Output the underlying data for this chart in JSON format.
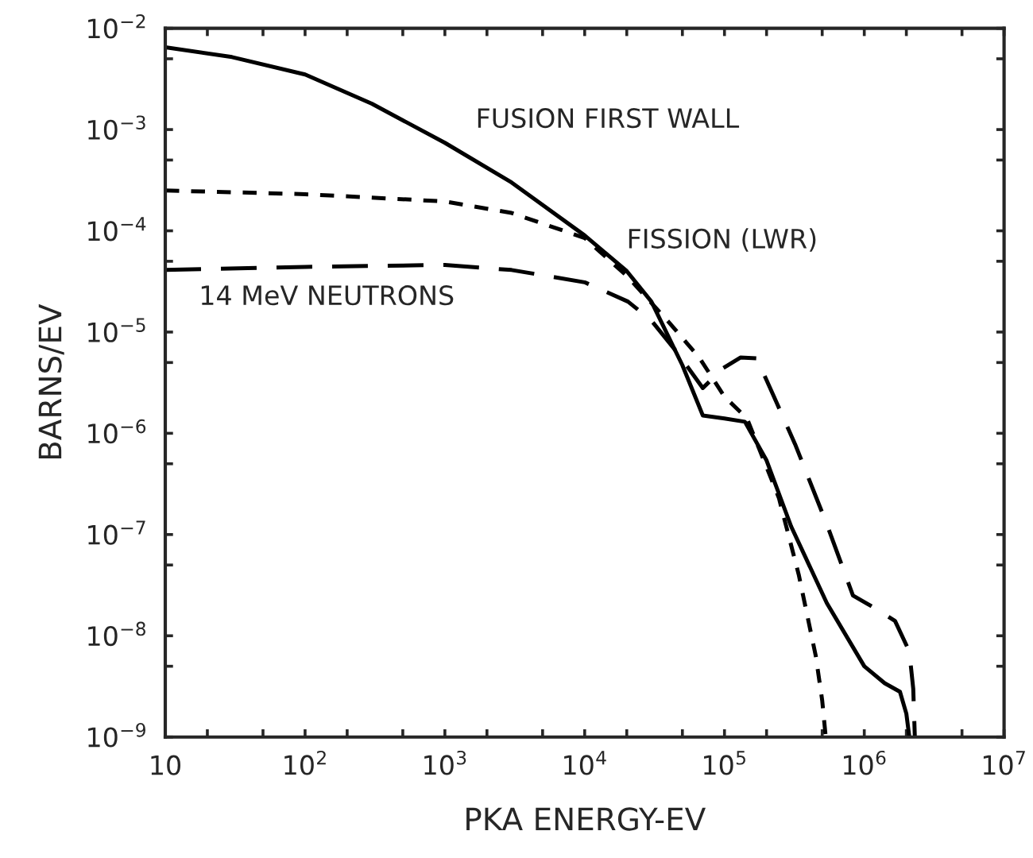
{
  "chart_data": {
    "type": "line",
    "xlabel": "PKA ENERGY-EV",
    "ylabel": "BARNS/EV",
    "log": "xy",
    "grid": false,
    "legend": false,
    "marker": "none",
    "xlim": [
      10,
      10000000
    ],
    "ylim": [
      1e-09,
      0.01
    ],
    "xticks": [
      10,
      {
        "value": 20,
        "label": null
      },
      {
        "value": 50,
        "label": null
      },
      {
        "value": 100,
        "label": "10$^{2}$"
      },
      {
        "value": 200,
        "label": null
      },
      {
        "value": 500,
        "label": null
      },
      {
        "value": 1000,
        "label": "10$^{3}$"
      },
      {
        "value": 2000,
        "label": null
      },
      {
        "value": 5000,
        "label": null
      },
      {
        "value": 10000,
        "label": "10$^{4}$"
      },
      {
        "value": 20000,
        "label": null
      },
      {
        "value": 50000,
        "label": null
      },
      {
        "value": 100000,
        "label": "10$^{5}$"
      },
      {
        "value": 200000,
        "label": null
      },
      {
        "value": 500000,
        "label": null
      },
      {
        "value": 1000000,
        "label": "10$^{6}$"
      },
      {
        "value": 2000000,
        "label": null
      },
      {
        "value": 5000000,
        "label": null
      },
      {
        "value": 10000000,
        "label": "10$^{7}$"
      }
    ],
    "yticks": [
      {
        "value": 1e-09,
        "label": "10$^{−9}$"
      },
      {
        "value": 5e-09,
        "label": null
      },
      {
        "value": 1e-08,
        "label": "10$^{−8}$"
      },
      {
        "value": 5e-08,
        "label": null
      },
      {
        "value": 1e-07,
        "label": "10$^{−7}$"
      },
      {
        "value": 5e-07,
        "label": null
      },
      {
        "value": 1e-06,
        "label": "10$^{−6}$"
      },
      {
        "value": 5e-06,
        "label": null
      },
      {
        "value": 1e-05,
        "label": "10$^{−5}$"
      },
      {
        "value": 5e-05,
        "label": null
      },
      {
        "value": 0.0001,
        "label": "10$^{−4}$"
      },
      {
        "value": 0.0005,
        "label": null
      },
      {
        "value": 0.001,
        "label": "10$^{−3}$"
      },
      {
        "value": 0.005,
        "label": null
      },
      {
        "value": 0.01,
        "label": "10$^{−2}$"
      }
    ],
    "series": [
      {
        "name": "FUSION FIRST WALL",
        "color": "#000000",
        "line_style": "solid",
        "x": [
          10,
          30,
          100,
          300,
          1000,
          3000,
          10000,
          20000,
          30000,
          50000,
          70000,
          100000,
          140000,
          200000,
          300000,
          540000,
          1000000,
          1400000,
          1800000,
          2000000,
          2100000
        ],
        "values": [
          0.0065,
          0.0052,
          0.0035,
          0.0018,
          0.00074,
          0.0003,
          9e-05,
          4e-05,
          2e-05,
          4.7e-06,
          1.5e-06,
          1.4e-06,
          1.3e-06,
          5.4e-07,
          1.2e-07,
          2.1e-08,
          5e-09,
          3.4e-09,
          2.8e-09,
          1.7e-09,
          1e-09
        ]
      },
      {
        "name": "FISSION (LWR)",
        "color": "#000000",
        "line_style": "dotted",
        "x": [
          10,
          100,
          1000,
          3000,
          10000,
          20400,
          40000,
          66000,
          100000,
          145000,
          245000,
          340000,
          450000,
          500000,
          530000
        ],
        "values": [
          0.00025,
          0.00023,
          0.000195,
          0.00015,
          8.5e-05,
          3.5e-05,
          1.25e-05,
          5.6e-06,
          2.3e-06,
          1.4e-06,
          2.3e-07,
          4e-08,
          6.3e-09,
          2.3e-09,
          1e-09
        ]
      },
      {
        "name": "14 MeV NEUTRONS",
        "color": "#000000",
        "line_style": "dashed",
        "x": [
          10,
          100,
          1000,
          3000,
          10000,
          20400,
          30000,
          45000,
          70000,
          98000,
          130000,
          170000,
          220000,
          320000,
          540000,
          830000,
          1170000,
          1660000,
          2100000,
          2240000,
          2300000
        ],
        "values": [
          4.1e-05,
          4.4e-05,
          4.6e-05,
          4.1e-05,
          3.1e-05,
          2e-05,
          1.3e-05,
          6.5e-06,
          2.8e-06,
          4.4e-06,
          5.6e-06,
          5.5e-06,
          2.5e-06,
          7.8e-07,
          1.26e-07,
          2.5e-08,
          1.9e-08,
          1.4e-08,
          7e-09,
          3e-09,
          1e-09
        ]
      }
    ]
  }
}
